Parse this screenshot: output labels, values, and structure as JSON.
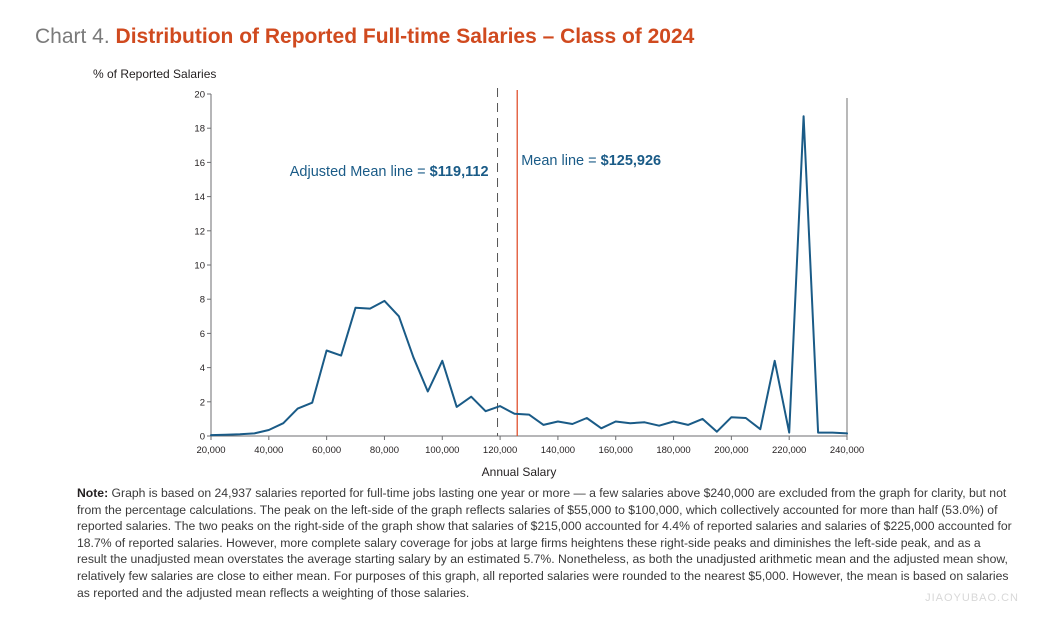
{
  "title": {
    "prefix": "Chart 4.",
    "main": "Distribution of Reported Full-time Salaries – Class of 2024"
  },
  "note": {
    "label": "Note:",
    "text": "Graph is based on 24,937 salaries reported for full-time jobs lasting one year or more — a few salaries above $240,000 are excluded from the graph for clarity, but not from the percentage calculations. The peak on the left-side of the graph reflects salaries of $55,000 to $100,000, which collectively accounted for more than half (53.0%) of reported salaries. The two peaks on the right-side of the graph show that salaries of $215,000 accounted for 4.4% of reported salaries and salaries of $225,000 accounted for 18.7% of reported salaries. However, more complete salary coverage for jobs at large firms heightens these right-side peaks and diminishes the left-side peak, and as a result the unadjusted mean overstates the average starting salary by an estimated 5.7%. Nonetheless, as both the unadjusted arithmetic mean and the adjusted mean show, relatively few salaries are close to either mean. For purposes of this graph, all reported salaries were rounded to the nearest $5,000. However, the mean is based on salaries as reported and the adjusted mean reflects a weighting of those salaries."
  },
  "watermark": "JIAOYUBAO.CN",
  "colors": {
    "title_accent": "#d04a1f",
    "line": "#1a5b87",
    "mean_line": "#e0512e",
    "adjusted_mean_line": "#555555",
    "axis": "#6d6e71"
  },
  "chart_data": {
    "type": "line",
    "ylabel": "% of Reported Salaries",
    "xlabel": "Annual Salary",
    "xlim": [
      20000,
      240000
    ],
    "ylim": [
      0,
      20
    ],
    "xticks": [
      20000,
      40000,
      60000,
      80000,
      100000,
      120000,
      140000,
      160000,
      180000,
      200000,
      220000,
      240000
    ],
    "xtick_labels": [
      "20,000",
      "40,000",
      "60,000",
      "80,000",
      "100,000",
      "120,000",
      "140,000",
      "160,000",
      "180,000",
      "200,000",
      "220,000",
      "240,000"
    ],
    "yticks": [
      0,
      2,
      4,
      6,
      8,
      10,
      12,
      14,
      16,
      18,
      20
    ],
    "ytick_labels": [
      "0",
      "2",
      "4",
      "6",
      "8",
      "10",
      "12",
      "14",
      "16",
      "18",
      "20"
    ],
    "grid": false,
    "series": [
      {
        "x": [
          20000,
          25000,
          30000,
          35000,
          40000,
          45000,
          50000,
          55000,
          60000,
          65000,
          70000,
          75000,
          80000,
          85000,
          90000,
          95000,
          100000,
          105000,
          110000,
          115000,
          120000,
          125000,
          130000,
          135000,
          140000,
          145000,
          150000,
          155000,
          160000,
          165000,
          170000,
          175000,
          180000,
          185000,
          190000,
          195000,
          200000,
          205000,
          210000,
          215000,
          220000,
          225000,
          230000,
          235000,
          240000
        ],
        "y": [
          0.05,
          0.07,
          0.1,
          0.15,
          0.35,
          0.75,
          1.6,
          1.95,
          5.0,
          4.7,
          7.5,
          7.45,
          7.9,
          7.0,
          4.6,
          2.6,
          4.4,
          1.7,
          2.3,
          1.45,
          1.75,
          1.3,
          1.25,
          0.65,
          0.85,
          0.7,
          1.05,
          0.45,
          0.85,
          0.75,
          0.8,
          0.6,
          0.85,
          0.65,
          1.0,
          0.25,
          1.1,
          1.05,
          0.4,
          4.4,
          0.2,
          18.7,
          0.2,
          0.2,
          0.15
        ]
      }
    ],
    "reference_lines": [
      {
        "label_prefix": "Adjusted Mean line = ",
        "label_value": "$119,112",
        "x": 119112,
        "style": "dashed"
      },
      {
        "label_prefix": "Mean line = ",
        "label_value": "$125,926",
        "x": 125926,
        "style": "solid"
      }
    ]
  }
}
